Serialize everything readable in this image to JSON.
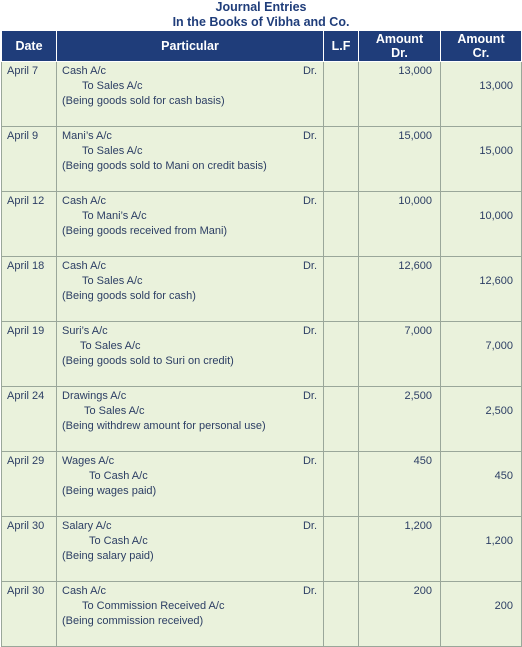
{
  "title": {
    "line1": "Journal Entries",
    "line2": "In the Books of Vibha and Co."
  },
  "headers": {
    "date": "Date",
    "particular": "Particular",
    "lf": "L.F",
    "amount_dr": [
      "Amount",
      "Dr."
    ],
    "amount_cr": [
      "Amount",
      "Cr."
    ]
  },
  "entries": [
    {
      "date": "April 7",
      "debit": "Cash A/c",
      "dr": "Dr.",
      "credit": "To Sales A/c",
      "narration": "(Being goods sold for cash basis)",
      "amount_dr": "13,000",
      "amount_cr": "13,000"
    },
    {
      "date": "April 9",
      "debit": "Mani’s A/c",
      "dr": "Dr.",
      "credit": "To Sales A/c",
      "narration": "(Being goods sold to Mani on credit basis)",
      "amount_dr": "15,000",
      "amount_cr": "15,000"
    },
    {
      "date": "April 12",
      "debit": "Cash A/c",
      "dr": "Dr.",
      "credit": "To Mani’s A/c",
      "narration": "(Being goods received from Mani)",
      "amount_dr": "10,000",
      "amount_cr": "10,000"
    },
    {
      "date": "April 18",
      "debit": "Cash A/c",
      "dr": "Dr.",
      "credit": "To Sales A/c",
      "narration": "(Being goods sold for cash)",
      "amount_dr": "12,600",
      "amount_cr": "12,600"
    },
    {
      "date": "April 19",
      "debit": "Suri’s A/c",
      "dr": "Dr.",
      "credit": "To Sales A/c",
      "narration": "(Being goods sold to Suri on credit)",
      "amount_dr": "7,000",
      "amount_cr": "7,000"
    },
    {
      "date": "April 24",
      "debit": "Drawings A/c",
      "dr": "Dr.",
      "credit": "To Sales A/c",
      "narration": "(Being withdrew amount for personal use)",
      "amount_dr": "2,500",
      "amount_cr": "2,500"
    },
    {
      "date": "April 29",
      "debit": "Wages A/c",
      "dr": "Dr.",
      "credit": "To Cash A/c",
      "narration": "(Being wages paid)",
      "amount_dr": "450",
      "amount_cr": "450"
    },
    {
      "date": "April 30",
      "debit": "Salary A/c",
      "dr": "Dr.",
      "credit": "To Cash A/c",
      "narration": "(Being salary paid)",
      "amount_dr": "1,200",
      "amount_cr": "1,200"
    },
    {
      "date": "April 30",
      "debit": "Cash A/c",
      "dr": "Dr.",
      "credit": "To Commission Received A/c",
      "narration": "(Being commission received)",
      "amount_dr": "200",
      "amount_cr": "200"
    }
  ]
}
